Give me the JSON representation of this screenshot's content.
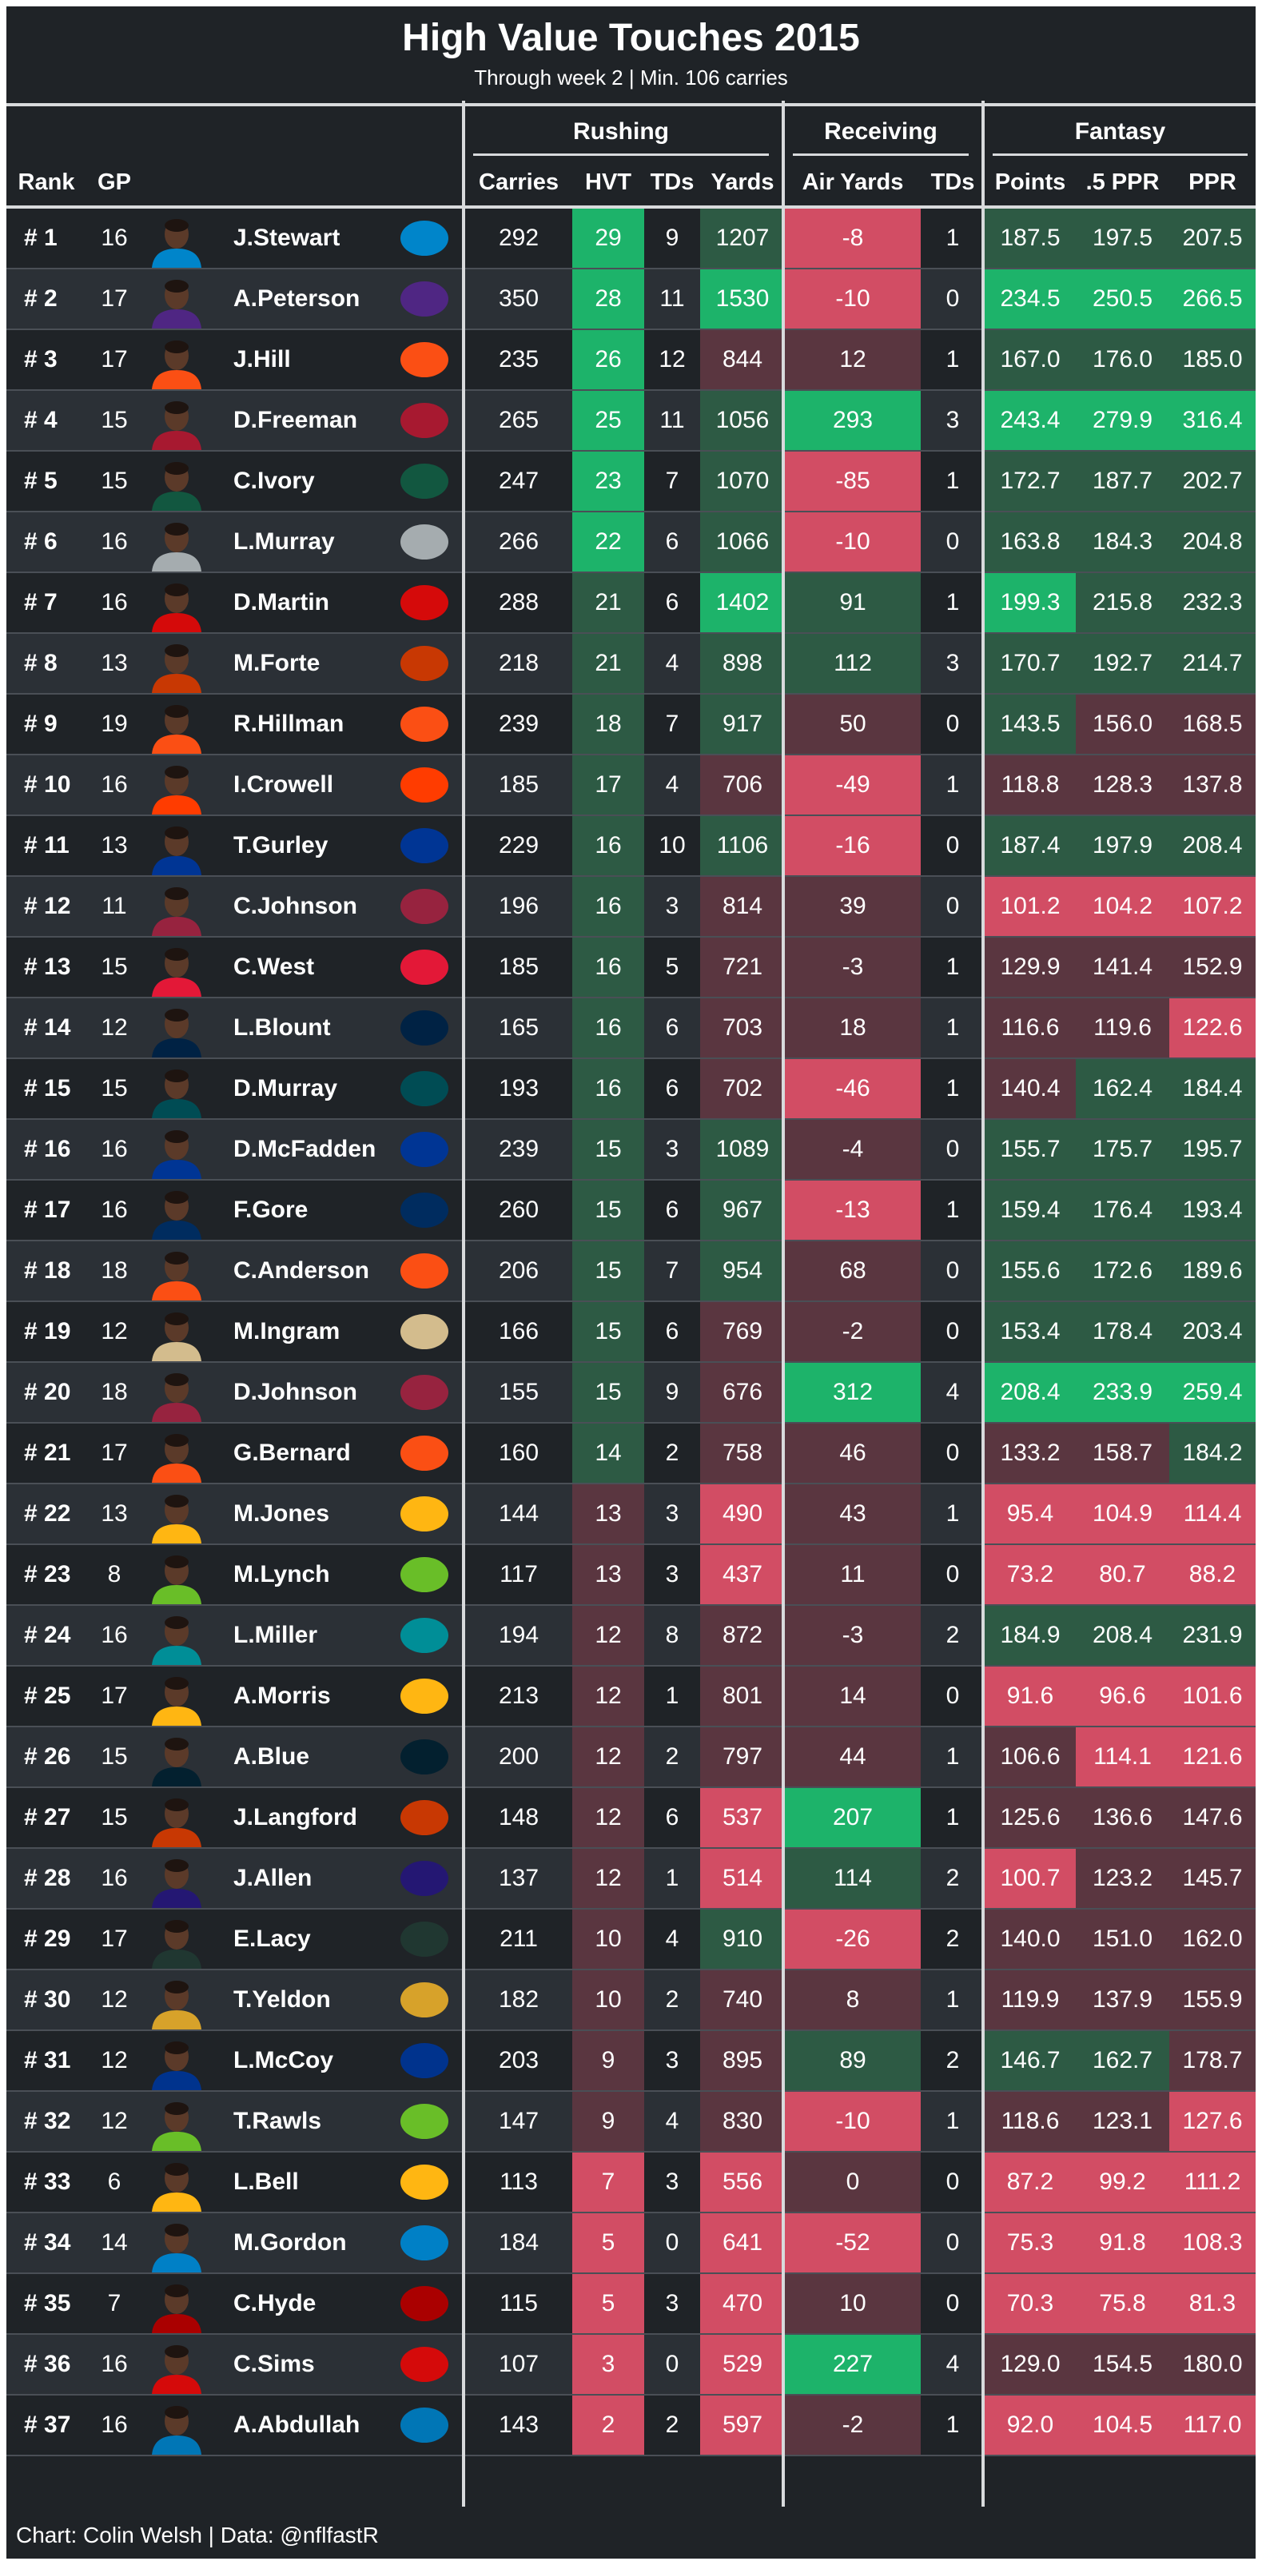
{
  "chart_data": {
    "type": "table",
    "title": "High Value Touches 2015",
    "subtitle": "Through week 2 | Min. 106 carries",
    "groups": [
      "Rushing",
      "Receiving",
      "Fantasy"
    ],
    "columns": [
      "Rank",
      "GP",
      "Carries",
      "HVT",
      "TDs",
      "Yards",
      "Air Yards",
      "TDs",
      "Points",
      ".5 PPR",
      "PPR"
    ],
    "rows": [
      {
        "rank": "# 1",
        "gp": "16",
        "name": "J.Stewart",
        "team_color": "#0085CA",
        "carries": "292",
        "hvt": "29",
        "rtd": "9",
        "yards": "1207",
        "air": "-8",
        "rectd": "1",
        "pts": "187.5",
        "half": "197.5",
        "ppr": "207.5"
      },
      {
        "rank": "# 2",
        "gp": "17",
        "name": "A.Peterson",
        "team_color": "#4F2683",
        "carries": "350",
        "hvt": "28",
        "rtd": "11",
        "yards": "1530",
        "air": "-10",
        "rectd": "0",
        "pts": "234.5",
        "half": "250.5",
        "ppr": "266.5"
      },
      {
        "rank": "# 3",
        "gp": "17",
        "name": "J.Hill",
        "team_color": "#FB4F14",
        "carries": "235",
        "hvt": "26",
        "rtd": "12",
        "yards": "844",
        "air": "12",
        "rectd": "1",
        "pts": "167.0",
        "half": "176.0",
        "ppr": "185.0"
      },
      {
        "rank": "# 4",
        "gp": "15",
        "name": "D.Freeman",
        "team_color": "#A71930",
        "carries": "265",
        "hvt": "25",
        "rtd": "11",
        "yards": "1056",
        "air": "293",
        "rectd": "3",
        "pts": "243.4",
        "half": "279.9",
        "ppr": "316.4"
      },
      {
        "rank": "# 5",
        "gp": "15",
        "name": "C.Ivory",
        "team_color": "#125740",
        "carries": "247",
        "hvt": "23",
        "rtd": "7",
        "yards": "1070",
        "air": "-85",
        "rectd": "1",
        "pts": "172.7",
        "half": "187.7",
        "ppr": "202.7"
      },
      {
        "rank": "# 6",
        "gp": "16",
        "name": "L.Murray",
        "team_color": "#A5ACAF",
        "carries": "266",
        "hvt": "22",
        "rtd": "6",
        "yards": "1066",
        "air": "-10",
        "rectd": "0",
        "pts": "163.8",
        "half": "184.3",
        "ppr": "204.8"
      },
      {
        "rank": "# 7",
        "gp": "16",
        "name": "D.Martin",
        "team_color": "#D50A0A",
        "carries": "288",
        "hvt": "21",
        "rtd": "6",
        "yards": "1402",
        "air": "91",
        "rectd": "1",
        "pts": "199.3",
        "half": "215.8",
        "ppr": "232.3"
      },
      {
        "rank": "# 8",
        "gp": "13",
        "name": "M.Forte",
        "team_color": "#C83803",
        "carries": "218",
        "hvt": "21",
        "rtd": "4",
        "yards": "898",
        "air": "112",
        "rectd": "3",
        "pts": "170.7",
        "half": "192.7",
        "ppr": "214.7"
      },
      {
        "rank": "# 9",
        "gp": "19",
        "name": "R.Hillman",
        "team_color": "#FB4F14",
        "carries": "239",
        "hvt": "18",
        "rtd": "7",
        "yards": "917",
        "air": "50",
        "rectd": "0",
        "pts": "143.5",
        "half": "156.0",
        "ppr": "168.5"
      },
      {
        "rank": "# 10",
        "gp": "16",
        "name": "I.Crowell",
        "team_color": "#FF3C00",
        "carries": "185",
        "hvt": "17",
        "rtd": "4",
        "yards": "706",
        "air": "-49",
        "rectd": "1",
        "pts": "118.8",
        "half": "128.3",
        "ppr": "137.8"
      },
      {
        "rank": "# 11",
        "gp": "13",
        "name": "T.Gurley",
        "team_color": "#003594",
        "carries": "229",
        "hvt": "16",
        "rtd": "10",
        "yards": "1106",
        "air": "-16",
        "rectd": "0",
        "pts": "187.4",
        "half": "197.9",
        "ppr": "208.4"
      },
      {
        "rank": "# 12",
        "gp": "11",
        "name": "C.Johnson",
        "team_color": "#97233F",
        "carries": "196",
        "hvt": "16",
        "rtd": "3",
        "yards": "814",
        "air": "39",
        "rectd": "0",
        "pts": "101.2",
        "half": "104.2",
        "ppr": "107.2"
      },
      {
        "rank": "# 13",
        "gp": "15",
        "name": "C.West",
        "team_color": "#E31837",
        "carries": "185",
        "hvt": "16",
        "rtd": "5",
        "yards": "721",
        "air": "-3",
        "rectd": "1",
        "pts": "129.9",
        "half": "141.4",
        "ppr": "152.9"
      },
      {
        "rank": "# 14",
        "gp": "12",
        "name": "L.Blount",
        "team_color": "#002244",
        "carries": "165",
        "hvt": "16",
        "rtd": "6",
        "yards": "703",
        "air": "18",
        "rectd": "1",
        "pts": "116.6",
        "half": "119.6",
        "ppr": "122.6"
      },
      {
        "rank": "# 15",
        "gp": "15",
        "name": "D.Murray",
        "team_color": "#004C54",
        "carries": "193",
        "hvt": "16",
        "rtd": "6",
        "yards": "702",
        "air": "-46",
        "rectd": "1",
        "pts": "140.4",
        "half": "162.4",
        "ppr": "184.4"
      },
      {
        "rank": "# 16",
        "gp": "16",
        "name": "D.McFadden",
        "team_color": "#003594",
        "carries": "239",
        "hvt": "15",
        "rtd": "3",
        "yards": "1089",
        "air": "-4",
        "rectd": "0",
        "pts": "155.7",
        "half": "175.7",
        "ppr": "195.7"
      },
      {
        "rank": "# 17",
        "gp": "16",
        "name": "F.Gore",
        "team_color": "#002C5F",
        "carries": "260",
        "hvt": "15",
        "rtd": "6",
        "yards": "967",
        "air": "-13",
        "rectd": "1",
        "pts": "159.4",
        "half": "176.4",
        "ppr": "193.4"
      },
      {
        "rank": "# 18",
        "gp": "18",
        "name": "C.Anderson",
        "team_color": "#FB4F14",
        "carries": "206",
        "hvt": "15",
        "rtd": "7",
        "yards": "954",
        "air": "68",
        "rectd": "0",
        "pts": "155.6",
        "half": "172.6",
        "ppr": "189.6"
      },
      {
        "rank": "# 19",
        "gp": "12",
        "name": "M.Ingram",
        "team_color": "#D3BC8D",
        "carries": "166",
        "hvt": "15",
        "rtd": "6",
        "yards": "769",
        "air": "-2",
        "rectd": "0",
        "pts": "153.4",
        "half": "178.4",
        "ppr": "203.4"
      },
      {
        "rank": "# 20",
        "gp": "18",
        "name": "D.Johnson",
        "team_color": "#97233F",
        "carries": "155",
        "hvt": "15",
        "rtd": "9",
        "yards": "676",
        "air": "312",
        "rectd": "4",
        "pts": "208.4",
        "half": "233.9",
        "ppr": "259.4"
      },
      {
        "rank": "# 21",
        "gp": "17",
        "name": "G.Bernard",
        "team_color": "#FB4F14",
        "carries": "160",
        "hvt": "14",
        "rtd": "2",
        "yards": "758",
        "air": "46",
        "rectd": "0",
        "pts": "133.2",
        "half": "158.7",
        "ppr": "184.2"
      },
      {
        "rank": "# 22",
        "gp": "13",
        "name": "M.Jones",
        "team_color": "#FFB612",
        "carries": "144",
        "hvt": "13",
        "rtd": "3",
        "yards": "490",
        "air": "43",
        "rectd": "1",
        "pts": "95.4",
        "half": "104.9",
        "ppr": "114.4"
      },
      {
        "rank": "# 23",
        "gp": "8",
        "name": "M.Lynch",
        "team_color": "#69BE28",
        "carries": "117",
        "hvt": "13",
        "rtd": "3",
        "yards": "437",
        "air": "11",
        "rectd": "0",
        "pts": "73.2",
        "half": "80.7",
        "ppr": "88.2"
      },
      {
        "rank": "# 24",
        "gp": "16",
        "name": "L.Miller",
        "team_color": "#008E97",
        "carries": "194",
        "hvt": "12",
        "rtd": "8",
        "yards": "872",
        "air": "-3",
        "rectd": "2",
        "pts": "184.9",
        "half": "208.4",
        "ppr": "231.9"
      },
      {
        "rank": "# 25",
        "gp": "17",
        "name": "A.Morris",
        "team_color": "#FFB612",
        "carries": "213",
        "hvt": "12",
        "rtd": "1",
        "yards": "801",
        "air": "14",
        "rectd": "0",
        "pts": "91.6",
        "half": "96.6",
        "ppr": "101.6"
      },
      {
        "rank": "# 26",
        "gp": "15",
        "name": "A.Blue",
        "team_color": "#03202F",
        "carries": "200",
        "hvt": "12",
        "rtd": "2",
        "yards": "797",
        "air": "44",
        "rectd": "1",
        "pts": "106.6",
        "half": "114.1",
        "ppr": "121.6"
      },
      {
        "rank": "# 27",
        "gp": "15",
        "name": "J.Langford",
        "team_color": "#C83803",
        "carries": "148",
        "hvt": "12",
        "rtd": "6",
        "yards": "537",
        "air": "207",
        "rectd": "1",
        "pts": "125.6",
        "half": "136.6",
        "ppr": "147.6"
      },
      {
        "rank": "# 28",
        "gp": "16",
        "name": "J.Allen",
        "team_color": "#241773",
        "carries": "137",
        "hvt": "12",
        "rtd": "1",
        "yards": "514",
        "air": "114",
        "rectd": "2",
        "pts": "100.7",
        "half": "123.2",
        "ppr": "145.7"
      },
      {
        "rank": "# 29",
        "gp": "17",
        "name": "E.Lacy",
        "team_color": "#203731",
        "carries": "211",
        "hvt": "10",
        "rtd": "4",
        "yards": "910",
        "air": "-26",
        "rectd": "2",
        "pts": "140.0",
        "half": "151.0",
        "ppr": "162.0"
      },
      {
        "rank": "# 30",
        "gp": "12",
        "name": "T.Yeldon",
        "team_color": "#D7A22A",
        "carries": "182",
        "hvt": "10",
        "rtd": "2",
        "yards": "740",
        "air": "8",
        "rectd": "1",
        "pts": "119.9",
        "half": "137.9",
        "ppr": "155.9"
      },
      {
        "rank": "# 31",
        "gp": "12",
        "name": "L.McCoy",
        "team_color": "#00338D",
        "carries": "203",
        "hvt": "9",
        "rtd": "3",
        "yards": "895",
        "air": "89",
        "rectd": "2",
        "pts": "146.7",
        "half": "162.7",
        "ppr": "178.7"
      },
      {
        "rank": "# 32",
        "gp": "12",
        "name": "T.Rawls",
        "team_color": "#69BE28",
        "carries": "147",
        "hvt": "9",
        "rtd": "4",
        "yards": "830",
        "air": "-10",
        "rectd": "1",
        "pts": "118.6",
        "half": "123.1",
        "ppr": "127.6"
      },
      {
        "rank": "# 33",
        "gp": "6",
        "name": "L.Bell",
        "team_color": "#FFB612",
        "carries": "113",
        "hvt": "7",
        "rtd": "3",
        "yards": "556",
        "air": "0",
        "rectd": "0",
        "pts": "87.2",
        "half": "99.2",
        "ppr": "111.2"
      },
      {
        "rank": "# 34",
        "gp": "14",
        "name": "M.Gordon",
        "team_color": "#0080C6",
        "carries": "184",
        "hvt": "5",
        "rtd": "0",
        "yards": "641",
        "air": "-52",
        "rectd": "0",
        "pts": "75.3",
        "half": "91.8",
        "ppr": "108.3"
      },
      {
        "rank": "# 35",
        "gp": "7",
        "name": "C.Hyde",
        "team_color": "#AA0000",
        "carries": "115",
        "hvt": "5",
        "rtd": "3",
        "yards": "470",
        "air": "10",
        "rectd": "0",
        "pts": "70.3",
        "half": "75.8",
        "ppr": "81.3"
      },
      {
        "rank": "# 36",
        "gp": "16",
        "name": "C.Sims",
        "team_color": "#D50A0A",
        "carries": "107",
        "hvt": "3",
        "rtd": "0",
        "yards": "529",
        "air": "227",
        "rectd": "4",
        "pts": "129.0",
        "half": "154.5",
        "ppr": "180.0"
      },
      {
        "rank": "# 37",
        "gp": "16",
        "name": "A.Abdullah",
        "team_color": "#0076B6",
        "carries": "143",
        "hvt": "2",
        "rtd": "2",
        "yards": "597",
        "air": "-2",
        "rectd": "1",
        "pts": "92.0",
        "half": "104.5",
        "ppr": "117.0"
      }
    ]
  },
  "footer": "Chart: Colin Welsh | Data: @nflfastR",
  "colors": {
    "background": "#1f2327",
    "row_alt": "#2b3036",
    "high": "#1db36a",
    "mid_high": "#2d5a44",
    "mid_low": "#5a3640",
    "low": "#d24d64"
  }
}
